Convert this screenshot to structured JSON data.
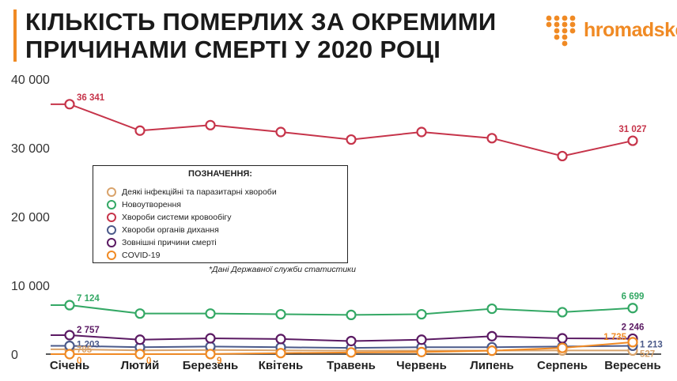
{
  "title_lines": [
    "КІЛЬКІСТЬ ПОМЕРЛИХ ЗА ОКРЕМИМИ",
    "ПРИЧИНАМИ СМЕРТІ У 2020 РОЦІ"
  ],
  "brand": {
    "name": "hromadske",
    "logo_icon": "hromadske-logo-dots-icon",
    "color": "#f08a24"
  },
  "legend": {
    "title": "ПОЗНАЧЕННЯ:",
    "items": [
      {
        "label": "Деякі інфекційні та паразитарні хвороби",
        "color": "#d9a36b"
      },
      {
        "label": "Новоутворення",
        "color": "#34a865"
      },
      {
        "label": "Хвороби системи кровообігу",
        "color": "#c6344a"
      },
      {
        "label": "Хвороби органів дихання",
        "color": "#4b5a8a"
      },
      {
        "label": "Зовнішні причини смерті",
        "color": "#5b1a63"
      },
      {
        "label": "COVID-19",
        "color": "#f08a24"
      }
    ]
  },
  "note": "*Дані Державної служби статистики",
  "chart_data": {
    "type": "line",
    "categories": [
      "Січень",
      "Лютий",
      "Березень",
      "Квітень",
      "Травень",
      "Червень",
      "Липень",
      "Серпень",
      "Вересень"
    ],
    "yticks": [
      "0",
      "10 000",
      "20 000",
      "30 000",
      "40 000"
    ],
    "ylim": [
      0,
      40000
    ],
    "grid": false,
    "legend_position": "middle-left",
    "series": [
      {
        "name": "Хвороби системи кровообігу",
        "color": "#c6344a",
        "values": [
          36341,
          32500,
          33300,
          32300,
          31200,
          32300,
          31400,
          28800,
          31027
        ],
        "labels": [
          {
            "index": 0,
            "text": "36 341"
          },
          {
            "index": 8,
            "text": "31 027"
          }
        ]
      },
      {
        "name": "Новоутворення",
        "color": "#34a865",
        "values": [
          7124,
          5900,
          5900,
          5800,
          5700,
          5800,
          6600,
          6100,
          6699
        ],
        "labels": [
          {
            "index": 0,
            "text": "7 124"
          },
          {
            "index": 8,
            "text": "6 699"
          }
        ]
      },
      {
        "name": "Зовнішні причини смерті",
        "color": "#5b1a63",
        "values": [
          2757,
          2100,
          2300,
          2200,
          1900,
          2100,
          2600,
          2300,
          2246
        ],
        "labels": [
          {
            "index": 0,
            "text": "2 757"
          },
          {
            "index": 8,
            "text": "2 246"
          }
        ]
      },
      {
        "name": "Хвороби органів дихання",
        "color": "#4b5a8a",
        "values": [
          1203,
          1000,
          1100,
          1000,
          900,
          1000,
          1000,
          1100,
          1213
        ],
        "labels": [
          {
            "index": 0,
            "text": "1 203"
          },
          {
            "index": 8,
            "text": "1 213"
          }
        ]
      },
      {
        "name": "Деякі інфекційні та паразитарні хвороби",
        "color": "#d9a36b",
        "values": [
          705,
          550,
          600,
          550,
          500,
          520,
          520,
          530,
          527
        ],
        "labels": [
          {
            "index": 0,
            "text": "705"
          },
          {
            "index": 8,
            "text": "527"
          }
        ]
      },
      {
        "name": "COVID-19",
        "color": "#f08a24",
        "values": [
          0,
          0,
          9,
          150,
          250,
          300,
          500,
          900,
          1735
        ],
        "labels": [
          {
            "index": 0,
            "text": "0"
          },
          {
            "index": 1,
            "text": "0"
          },
          {
            "index": 2,
            "text": "9"
          },
          {
            "index": 8,
            "text": "1 735"
          }
        ]
      }
    ]
  }
}
